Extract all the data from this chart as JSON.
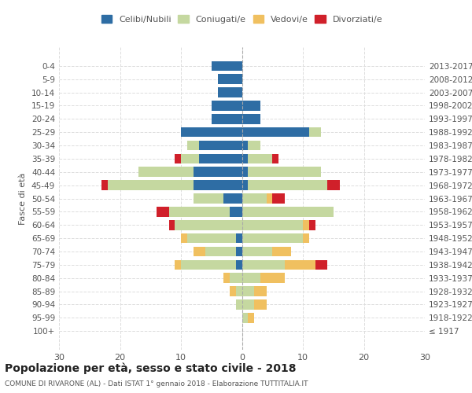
{
  "age_groups": [
    "100+",
    "95-99",
    "90-94",
    "85-89",
    "80-84",
    "75-79",
    "70-74",
    "65-69",
    "60-64",
    "55-59",
    "50-54",
    "45-49",
    "40-44",
    "35-39",
    "30-34",
    "25-29",
    "20-24",
    "15-19",
    "10-14",
    "5-9",
    "0-4"
  ],
  "birth_years": [
    "≤ 1917",
    "1918-1922",
    "1923-1927",
    "1928-1932",
    "1933-1937",
    "1938-1942",
    "1943-1947",
    "1948-1952",
    "1953-1957",
    "1958-1962",
    "1963-1967",
    "1968-1972",
    "1973-1977",
    "1978-1982",
    "1983-1987",
    "1988-1992",
    "1993-1997",
    "1998-2002",
    "2003-2007",
    "2008-2012",
    "2013-2017"
  ],
  "male": {
    "celibe": [
      0,
      0,
      0,
      0,
      0,
      1,
      1,
      1,
      0,
      2,
      3,
      8,
      8,
      7,
      7,
      10,
      5,
      5,
      4,
      4,
      5
    ],
    "coniugato": [
      0,
      0,
      1,
      1,
      2,
      9,
      5,
      8,
      11,
      10,
      5,
      14,
      9,
      3,
      2,
      0,
      0,
      0,
      0,
      0,
      0
    ],
    "vedovo": [
      0,
      0,
      0,
      1,
      1,
      1,
      2,
      1,
      0,
      0,
      0,
      0,
      0,
      0,
      0,
      0,
      0,
      0,
      0,
      0,
      0
    ],
    "divorziato": [
      0,
      0,
      0,
      0,
      0,
      0,
      0,
      0,
      1,
      2,
      0,
      1,
      0,
      1,
      0,
      0,
      0,
      0,
      0,
      0,
      0
    ]
  },
  "female": {
    "nubile": [
      0,
      0,
      0,
      0,
      0,
      0,
      0,
      0,
      0,
      0,
      0,
      1,
      1,
      1,
      1,
      11,
      3,
      3,
      0,
      0,
      0
    ],
    "coniugata": [
      0,
      1,
      2,
      2,
      3,
      7,
      5,
      10,
      10,
      15,
      4,
      13,
      12,
      4,
      2,
      2,
      0,
      0,
      0,
      0,
      0
    ],
    "vedova": [
      0,
      1,
      2,
      2,
      4,
      5,
      3,
      1,
      1,
      0,
      1,
      0,
      0,
      0,
      0,
      0,
      0,
      0,
      0,
      0,
      0
    ],
    "divorziata": [
      0,
      0,
      0,
      0,
      0,
      2,
      0,
      0,
      1,
      0,
      2,
      2,
      0,
      1,
      0,
      0,
      0,
      0,
      0,
      0,
      0
    ]
  },
  "colors": {
    "celibe": "#2e6da4",
    "coniugato": "#c5d8a0",
    "vedovo": "#f0c060",
    "divorziato": "#d0202a"
  },
  "xlim": [
    -30,
    30
  ],
  "xticks": [
    -30,
    -20,
    -10,
    0,
    10,
    20,
    30
  ],
  "xticklabels": [
    "30",
    "20",
    "10",
    "0",
    "10",
    "20",
    "30"
  ],
  "title": "Popolazione per età, sesso e stato civile - 2018",
  "subtitle": "COMUNE DI RIVARONE (AL) - Dati ISTAT 1° gennaio 2018 - Elaborazione TUTTITALIA.IT",
  "ylabel_left": "Fasce di età",
  "legend_labels": [
    "Celibi/Nubili",
    "Coniugati/e",
    "Vedovi/e",
    "Divorziati/e"
  ],
  "bg_color": "#ffffff",
  "grid_color": "#dddddd"
}
